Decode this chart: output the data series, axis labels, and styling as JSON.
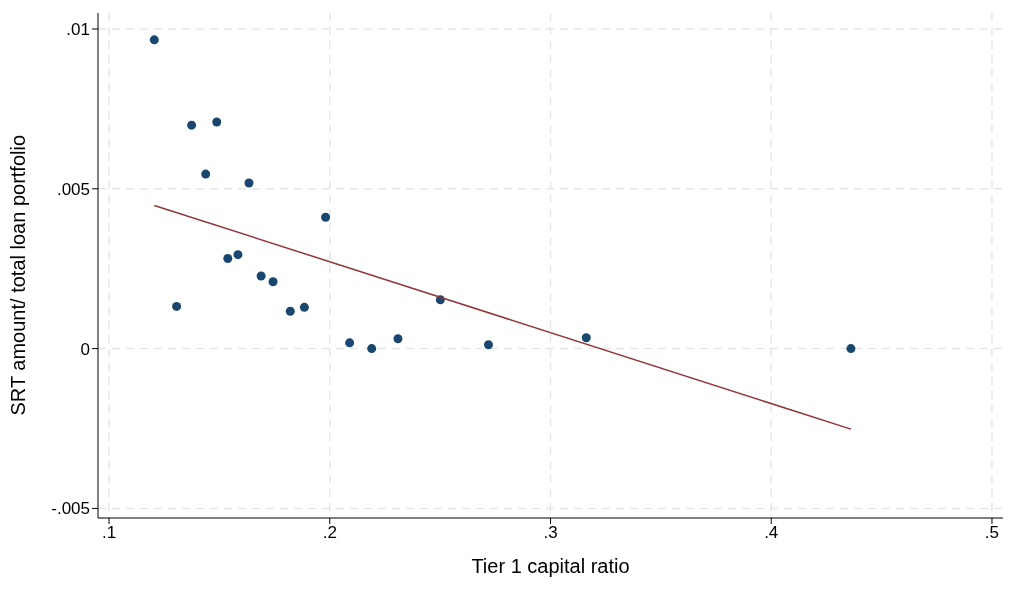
{
  "chart_data": {
    "type": "scatter",
    "xlabel": "Tier 1 capital ratio",
    "ylabel": "SRT amount/ total loan portfolio",
    "xlim": [
      0.095,
      0.505
    ],
    "ylim": [
      -0.0053,
      0.0105
    ],
    "xticks": [
      {
        "value": 0.1,
        "label": ".1"
      },
      {
        "value": 0.2,
        "label": ".2"
      },
      {
        "value": 0.3,
        "label": ".3"
      },
      {
        "value": 0.4,
        "label": ".4"
      },
      {
        "value": 0.5,
        "label": ".5"
      }
    ],
    "yticks": [
      {
        "value": -0.005,
        "label": "-.005"
      },
      {
        "value": 0,
        "label": "0"
      },
      {
        "value": 0.005,
        "label": ".005"
      },
      {
        "value": 0.01,
        "label": ".01"
      }
    ],
    "grid": true,
    "series": [
      {
        "marker": "circle",
        "color": "#1a476f",
        "x": [
          0.1205,
          0.1306,
          0.1374,
          0.1438,
          0.1488,
          0.1538,
          0.1584,
          0.1634,
          0.1689,
          0.1743,
          0.1821,
          0.1885,
          0.1981,
          0.209,
          0.219,
          0.2309,
          0.2501,
          0.2719,
          0.3162,
          0.4361
        ],
        "values": [
          0.00966,
          0.00132,
          0.00699,
          0.00546,
          0.00709,
          0.00282,
          0.00294,
          0.00518,
          0.00227,
          0.00209,
          0.00117,
          0.00129,
          0.00411,
          0.00018,
          0,
          0.00031,
          0.00153,
          0.00012,
          0.00034,
          0
        ]
      },
      {
        "type": "line",
        "color": "#90353b",
        "x": [
          0.1205,
          0.4361
        ],
        "values": [
          0.00448,
          -0.00252
        ]
      }
    ]
  }
}
